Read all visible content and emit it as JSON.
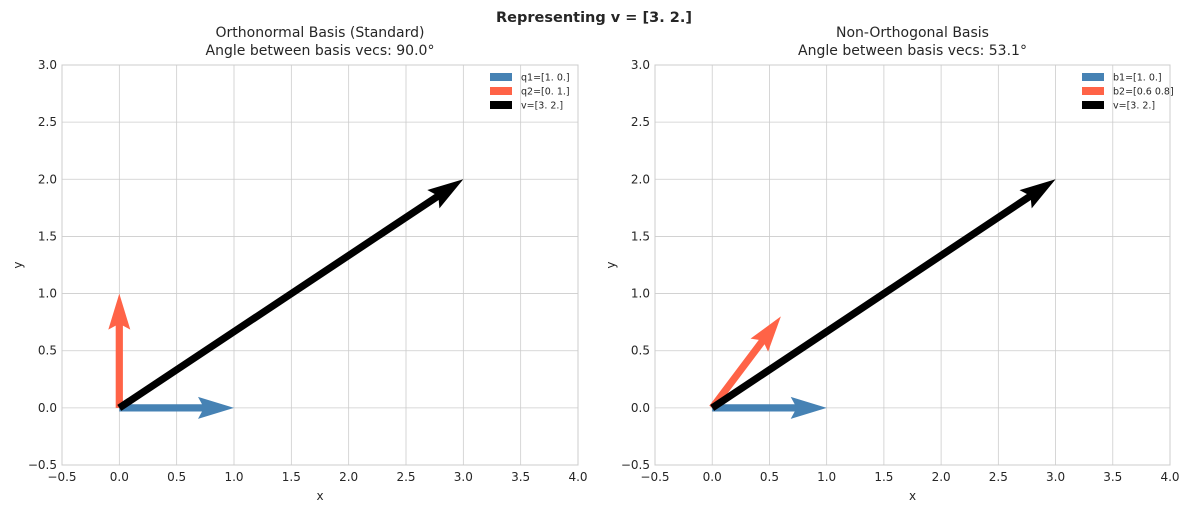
{
  "suptitle": "Representing v = [3. 2.]",
  "chart_data": [
    {
      "type": "quiver",
      "title_line1": "Orthonormal Basis (Standard)",
      "title_line2": "Angle between basis vecs: 90.0°",
      "xlabel": "x",
      "ylabel": "y",
      "xlim": [
        -0.5,
        4.0
      ],
      "ylim": [
        -0.5,
        3.0
      ],
      "xticks": [
        "−0.5",
        "0.0",
        "0.5",
        "1.0",
        "1.5",
        "2.0",
        "2.5",
        "3.0",
        "3.5",
        "4.0"
      ],
      "yticks": [
        "−0.5",
        "0.0",
        "0.5",
        "1.0",
        "1.5",
        "2.0",
        "2.5",
        "3.0"
      ],
      "grid": true,
      "legend_placement": "top-right",
      "vectors": [
        {
          "name": "q1=[1. 0.]",
          "origin": [
            0,
            0
          ],
          "vec": [
            1,
            0
          ],
          "color": "#4682b4"
        },
        {
          "name": "q2=[0. 1.]",
          "origin": [
            0,
            0
          ],
          "vec": [
            0,
            1
          ],
          "color": "#ff6347"
        },
        {
          "name": "v=[3. 2.]",
          "origin": [
            0,
            0
          ],
          "vec": [
            3,
            2
          ],
          "color": "#000000"
        }
      ]
    },
    {
      "type": "quiver",
      "title_line1": "Non-Orthogonal Basis",
      "title_line2": "Angle between basis vecs: 53.1°",
      "xlabel": "x",
      "ylabel": "y",
      "xlim": [
        -0.5,
        4.0
      ],
      "ylim": [
        -0.5,
        3.0
      ],
      "xticks": [
        "−0.5",
        "0.0",
        "0.5",
        "1.0",
        "1.5",
        "2.0",
        "2.5",
        "3.0",
        "3.5",
        "4.0"
      ],
      "yticks": [
        "−0.5",
        "0.0",
        "0.5",
        "1.0",
        "1.5",
        "2.0",
        "2.5",
        "3.0"
      ],
      "grid": true,
      "legend_placement": "top-right",
      "vectors": [
        {
          "name": "b1=[1. 0.]",
          "origin": [
            0,
            0
          ],
          "vec": [
            1,
            0
          ],
          "color": "#4682b4"
        },
        {
          "name": "b2=[0.6 0.8]",
          "origin": [
            0,
            0
          ],
          "vec": [
            0.6,
            0.8
          ],
          "color": "#ff6347"
        },
        {
          "name": "v=[3. 2.]",
          "origin": [
            0,
            0
          ],
          "vec": [
            3,
            2
          ],
          "color": "#000000"
        }
      ]
    }
  ]
}
